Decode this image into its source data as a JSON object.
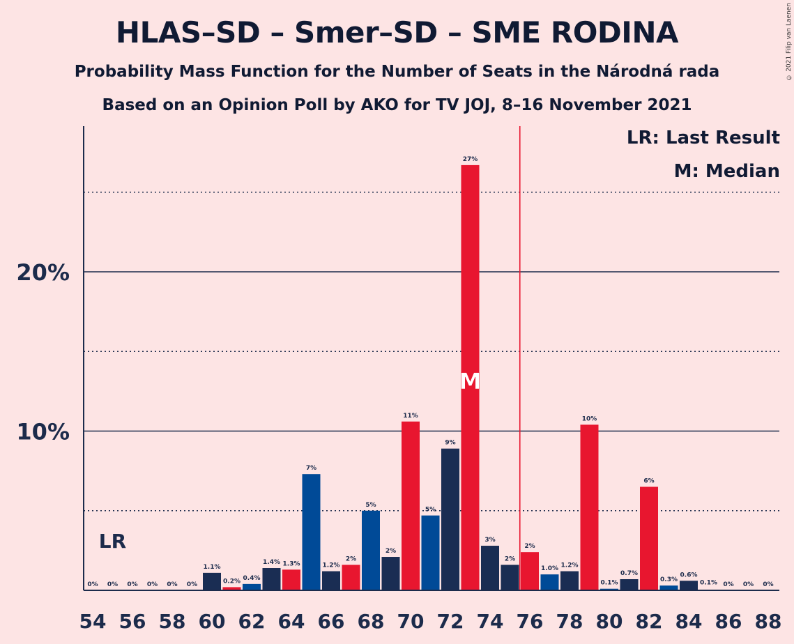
{
  "header": {
    "title": "HLAS–SD – Smer–SD – SME RODINA",
    "subtitle1": "Probability Mass Function for the Number of Seats in the Národná rada",
    "subtitle2": "Based on an Opinion Poll by AKO for TV JOJ, 8–16 November 2021",
    "copyright": "© 2021 Filip van Laenen"
  },
  "legend": {
    "lr": "LR: Last Result",
    "median": "M: Median"
  },
  "markers": {
    "lr_label": "LR",
    "median_label": "M"
  },
  "colors": {
    "background": "#FDE4E4",
    "smer": "#E8162F",
    "sme": "#004A97",
    "hlas": "#1A2D53",
    "majority_line": "#E8162F"
  },
  "chart_data": {
    "type": "bar",
    "x_min": 54,
    "x_max": 88,
    "x_ticks": [
      "54",
      "56",
      "58",
      "60",
      "62",
      "64",
      "66",
      "68",
      "70",
      "72",
      "74",
      "76",
      "78",
      "80",
      "82",
      "84",
      "86",
      "88"
    ],
    "y_ticks": [
      {
        "value": 10,
        "label": "10%"
      },
      {
        "value": 20,
        "label": "20%"
      }
    ],
    "y_dotted_lines": [
      5,
      15,
      25
    ],
    "ylim": [
      0,
      29
    ],
    "last_result_seat": 55,
    "median_seat": 73,
    "majority_threshold": 75.5,
    "bars": [
      {
        "seat": 54,
        "value": 0,
        "label": "0%",
        "color": "none"
      },
      {
        "seat": 55,
        "value": 0,
        "label": "0%",
        "color": "none"
      },
      {
        "seat": 56,
        "value": 0,
        "label": "0%",
        "color": "none"
      },
      {
        "seat": 57,
        "value": 0,
        "label": "0%",
        "color": "none"
      },
      {
        "seat": 58,
        "value": 0,
        "label": "0%",
        "color": "none"
      },
      {
        "seat": 59,
        "value": 0,
        "label": "0%",
        "color": "none"
      },
      {
        "seat": 60,
        "value": 1.1,
        "label": "1.1%",
        "color": "hlas"
      },
      {
        "seat": 61,
        "value": 0.2,
        "label": "0.2%",
        "color": "smer"
      },
      {
        "seat": 62,
        "value": 0.4,
        "label": "0.4%",
        "color": "sme"
      },
      {
        "seat": 63,
        "value": 1.4,
        "label": "1.4%",
        "color": "hlas"
      },
      {
        "seat": 64,
        "value": 1.3,
        "label": "1.3%",
        "color": "smer"
      },
      {
        "seat": 65,
        "value": 7.3,
        "label": "7%",
        "color": "sme"
      },
      {
        "seat": 66,
        "value": 1.2,
        "label": "1.2%",
        "color": "hlas"
      },
      {
        "seat": 67,
        "value": 1.6,
        "label": "2%",
        "color": "smer"
      },
      {
        "seat": 68,
        "value": 5.0,
        "label": "5%",
        "color": "sme"
      },
      {
        "seat": 69,
        "value": 2.1,
        "label": "2%",
        "color": "hlas"
      },
      {
        "seat": 70,
        "value": 10.6,
        "label": "11%",
        "color": "smer"
      },
      {
        "seat": 71,
        "value": 4.7,
        "label": "5%",
        "color": "sme"
      },
      {
        "seat": 72,
        "value": 8.9,
        "label": "9%",
        "color": "hlas"
      },
      {
        "seat": 73,
        "value": 26.7,
        "label": "27%",
        "color": "smer"
      },
      {
        "seat": 74,
        "value": 2.8,
        "label": "3%",
        "color": "hlas"
      },
      {
        "seat": 75,
        "value": 1.6,
        "label": "2%",
        "color": "hlas"
      },
      {
        "seat": 76,
        "value": 2.4,
        "label": "2%",
        "color": "smer"
      },
      {
        "seat": 77,
        "value": 1.0,
        "label": "1.0%",
        "color": "sme"
      },
      {
        "seat": 78,
        "value": 1.2,
        "label": "1.2%",
        "color": "hlas"
      },
      {
        "seat": 79,
        "value": 10.4,
        "label": "10%",
        "color": "smer"
      },
      {
        "seat": 80,
        "value": 0.1,
        "label": "0.1%",
        "color": "sme"
      },
      {
        "seat": 81,
        "value": 0.7,
        "label": "0.7%",
        "color": "hlas"
      },
      {
        "seat": 82,
        "value": 6.5,
        "label": "6%",
        "color": "smer"
      },
      {
        "seat": 83,
        "value": 0.3,
        "label": "0.3%",
        "color": "sme"
      },
      {
        "seat": 84,
        "value": 0.6,
        "label": "0.6%",
        "color": "hlas"
      },
      {
        "seat": 85,
        "value": 0.1,
        "label": "0.1%",
        "color": "none"
      },
      {
        "seat": 86,
        "value": 0,
        "label": "0%",
        "color": "none"
      },
      {
        "seat": 87,
        "value": 0,
        "label": "0%",
        "color": "none"
      },
      {
        "seat": 88,
        "value": 0,
        "label": "0%",
        "color": "none"
      }
    ]
  }
}
